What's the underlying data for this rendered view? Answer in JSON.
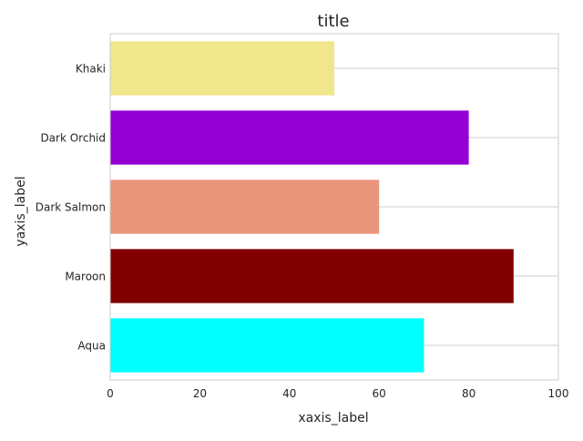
{
  "chart_data": {
    "type": "bar",
    "orientation": "horizontal",
    "title": "title",
    "xlabel": "xaxis_label",
    "ylabel": "yaxis_label",
    "categories": [
      "Aqua",
      "Maroon",
      "Dark Salmon",
      "Dark Orchid",
      "Khaki"
    ],
    "values": [
      70,
      90,
      60,
      80,
      50
    ],
    "colors": [
      "#00ffff",
      "#800000",
      "#e9967a",
      "#9400d3",
      "#f0e68c"
    ],
    "xlim": [
      0,
      100
    ],
    "x_ticks": [
      0,
      20,
      40,
      60,
      80,
      100
    ],
    "grid": "horizontal",
    "legend": "none"
  }
}
